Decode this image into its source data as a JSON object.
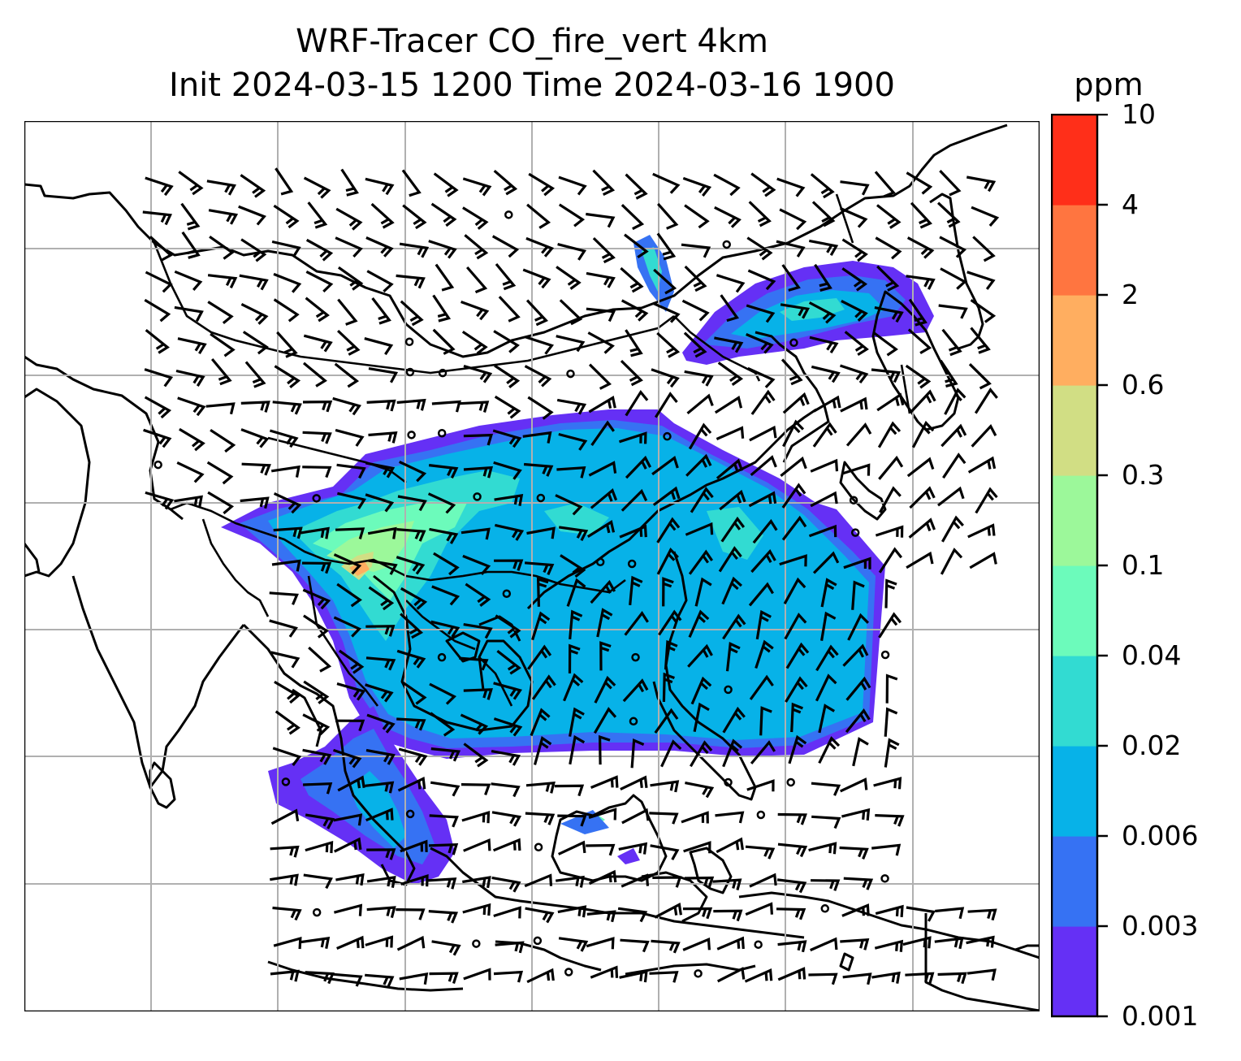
{
  "title": {
    "line1": "WRF-Tracer CO_fire_vert 4km",
    "line2": "Init 2024-03-15 1200 Time 2024-03-16 1900"
  },
  "colorbar": {
    "unit": "ppm",
    "ticks": [
      "10",
      "4",
      "2",
      "0.6",
      "0.3",
      "0.1",
      "0.04",
      "0.02",
      "0.006",
      "0.003",
      "0.001"
    ],
    "colors": [
      "#6530f5",
      "#3672f3",
      "#07b2e8",
      "#32dbd2",
      "#6cfbbb",
      "#9cf89a",
      "#d1de84",
      "#ffae60",
      "#ff7540",
      "#ff2f19"
    ]
  },
  "map": {
    "frame_color": "#000000",
    "grid_color": "#b0b0b0",
    "land_outline_color": "#000000",
    "features": [
      "coastlines",
      "country-borders",
      "gridlines",
      "wind-barbs",
      "co-tracer-shading"
    ]
  }
}
